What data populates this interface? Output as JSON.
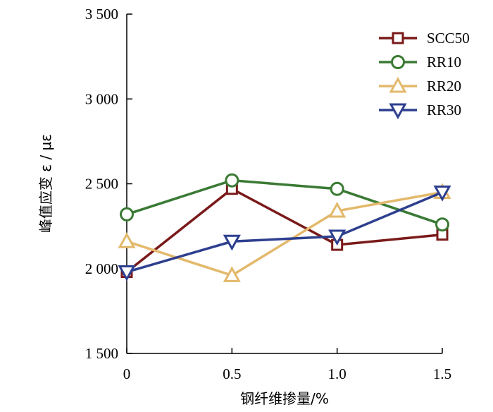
{
  "chart_data": {
    "type": "line",
    "xlabel": "钢纤维掺量/%",
    "ylabel": "峰值应变 ε / με",
    "x": [
      0,
      0.5,
      1.0,
      1.5
    ],
    "x_tick_labels": [
      "0",
      "0.5",
      "1.0",
      "1.5"
    ],
    "ylim": [
      1500,
      3500
    ],
    "y_ticks": [
      1500,
      2000,
      2500,
      3000,
      3500
    ],
    "y_tick_labels": [
      "1 500",
      "2 000",
      "2 500",
      "3 000",
      "3 500"
    ],
    "grid": false,
    "legend_position": "top-right",
    "series": [
      {
        "name": "SCC50",
        "marker": "square",
        "color": "#7a1a1a",
        "values": [
          1980,
          2470,
          2140,
          2200
        ]
      },
      {
        "name": "RR10",
        "marker": "circle",
        "color": "#3a7a34",
        "values": [
          2320,
          2520,
          2470,
          2260
        ]
      },
      {
        "name": "RR20",
        "marker": "triangle-up",
        "color": "#e3b96b",
        "values": [
          2160,
          1960,
          2340,
          2450
        ]
      },
      {
        "name": "RR30",
        "marker": "triangle-down",
        "color": "#2e3f8f",
        "values": [
          1980,
          2160,
          2190,
          2450
        ]
      }
    ]
  }
}
